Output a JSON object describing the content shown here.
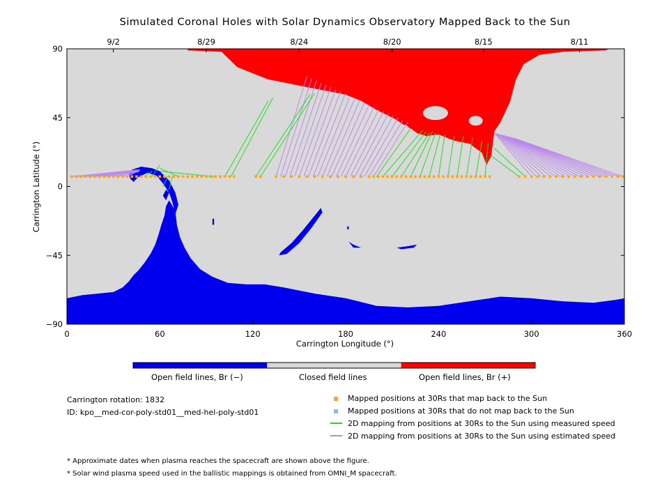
{
  "chart_data": {
    "type": "map",
    "title": "Simulated Coronal Holes with Solar Dynamics Observatory Mapped Back to the Sun",
    "xlabel": "Carrington Longitude (°)",
    "ylabel": "Carrington Latitude (°)",
    "xlim": [
      0,
      360
    ],
    "ylim": [
      -90,
      90
    ],
    "x_ticks": [
      "0",
      "60",
      "120",
      "180",
      "240",
      "300",
      "360"
    ],
    "x_tick_values": [
      0,
      60,
      120,
      180,
      240,
      300,
      360
    ],
    "y_ticks": [
      "90",
      "45",
      "0",
      "−45",
      "−90"
    ],
    "y_tick_values": [
      90,
      45,
      0,
      -45,
      -90
    ],
    "top_date_ticks": [
      {
        "label": "9/2",
        "lon": 30
      },
      {
        "label": "8/29",
        "lon": 90
      },
      {
        "label": "8/24",
        "lon": 150
      },
      {
        "label": "8/20",
        "lon": 210
      },
      {
        "label": "8/15",
        "lon": 269
      },
      {
        "label": "8/11",
        "lon": 331
      }
    ],
    "colors": {
      "open_negative": "#0000ee",
      "closed": "#d9d9d9",
      "open_positive": "#ff0000",
      "mapped_point": "#f5a623",
      "measured_line": "#22dd22",
      "estimated_line": "#bb88ee"
    },
    "spacecraft_latitude": 6.5,
    "mapped_points_lon": [
      3,
      6,
      9,
      12,
      15,
      18,
      21,
      24,
      27,
      30,
      33,
      36,
      39,
      42,
      45,
      48,
      51,
      54,
      57,
      60,
      63,
      66,
      69,
      72,
      75,
      78,
      81,
      84,
      87,
      90,
      93,
      96,
      99,
      102,
      105,
      108,
      122,
      125,
      135,
      140,
      145,
      150,
      155,
      160,
      165,
      170,
      175,
      180,
      185,
      190,
      195,
      198,
      201,
      204,
      207,
      210,
      213,
      216,
      219,
      222,
      225,
      228,
      231,
      234,
      237,
      240,
      243,
      246,
      249,
      252,
      255,
      258,
      261,
      264,
      267,
      270,
      273,
      292,
      296,
      300,
      304,
      308,
      312,
      316,
      320,
      324,
      328,
      332,
      336,
      340,
      344,
      348,
      352,
      356,
      359
    ],
    "measured_mappings": [
      {
        "from": [
          50,
          6.5
        ],
        "to": [
          55,
          10
        ]
      },
      {
        "from": [
          55,
          6.5
        ],
        "to": [
          60,
          14
        ]
      },
      {
        "from": [
          65,
          6.5
        ],
        "to": [
          62,
          0
        ]
      },
      {
        "from": [
          68,
          6.5
        ],
        "to": [
          66,
          -2
        ]
      },
      {
        "from": [
          72,
          6.5
        ],
        "to": [
          60,
          12
        ]
      },
      {
        "from": [
          95,
          6.5
        ],
        "to": [
          60,
          10
        ]
      },
      {
        "from": [
          102,
          6.5
        ],
        "to": [
          130,
          56
        ]
      },
      {
        "from": [
          106,
          6.5
        ],
        "to": [
          133,
          58
        ]
      },
      {
        "from": [
          122,
          6.5
        ],
        "to": [
          157,
          60
        ]
      },
      {
        "from": [
          125,
          6.5
        ],
        "to": [
          160,
          61
        ]
      },
      {
        "from": [
          200,
          6.5
        ],
        "to": [
          222,
          38
        ]
      },
      {
        "from": [
          204,
          6.5
        ],
        "to": [
          230,
          37
        ]
      },
      {
        "from": [
          210,
          6.5
        ],
        "to": [
          232,
          36
        ]
      },
      {
        "from": [
          216,
          6.5
        ],
        "to": [
          234,
          35
        ]
      },
      {
        "from": [
          222,
          6.5
        ],
        "to": [
          236,
          36
        ]
      },
      {
        "from": [
          228,
          6.5
        ],
        "to": [
          238,
          35
        ]
      },
      {
        "from": [
          234,
          6.5
        ],
        "to": [
          241,
          34
        ]
      },
      {
        "from": [
          240,
          6.5
        ],
        "to": [
          244,
          34
        ]
      },
      {
        "from": [
          246,
          6.5
        ],
        "to": [
          250,
          33
        ]
      },
      {
        "from": [
          252,
          6.5
        ],
        "to": [
          256,
          33
        ]
      },
      {
        "from": [
          258,
          6.5
        ],
        "to": [
          262,
          32
        ]
      },
      {
        "from": [
          264,
          6.5
        ],
        "to": [
          268,
          30
        ]
      },
      {
        "from": [
          270,
          6.5
        ],
        "to": [
          272,
          28
        ]
      },
      {
        "from": [
          292,
          6.5
        ],
        "to": [
          274,
          20
        ]
      },
      {
        "from": [
          296,
          6.5
        ],
        "to": [
          276,
          25
        ]
      }
    ],
    "estimated_mappings_range": {
      "left_start_lon": [
        3,
        40
      ],
      "left_end": [
        47,
        10
      ],
      "mid_start_lon": [
        135,
        198
      ],
      "mid_end_lon": [
        155,
        220
      ],
      "mid_end_lat": 72,
      "right_start_lon": [
        300,
        359
      ],
      "right_end_lon": [
        276,
        290
      ],
      "right_end_lat": 35
    }
  },
  "colorbar": {
    "labels": [
      "Open field lines, Br (−)",
      "Closed field lines",
      "Open field lines, Br (+)"
    ],
    "colors": [
      "#0000ee",
      "#d9d9d9",
      "#ff0000"
    ]
  },
  "info": {
    "rotation": "Carrington rotation: 1832",
    "id": "ID: kpo__med-cor-poly-std01__med-hel-poly-std01"
  },
  "legend": [
    {
      "label": "Mapped positions at 30Rs that map back to the Sun",
      "kind": "square",
      "color": "#f5a623"
    },
    {
      "label": "Mapped positions at 30Rs that do not map back to the Sun",
      "kind": "square",
      "color": "#88bbee"
    },
    {
      "label": "2D mapping from positions at 30Rs to the Sun using measured speed",
      "kind": "line",
      "color": "#22dd22"
    },
    {
      "label": "2D mapping from positions at 30Rs to the Sun using estimated speed",
      "kind": "line",
      "color": "#bb88ee"
    }
  ],
  "notes": [
    "* Approximate dates when plasma reaches the spacecraft are shown above the figure.",
    "* Solar wind plasma speed used in the ballistic mappings is obtained from OMNI_M spacecraft."
  ]
}
